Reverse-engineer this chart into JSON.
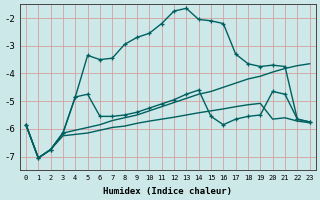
{
  "xlabel": "Humidex (Indice chaleur)",
  "background_color": "#cce8e8",
  "grid_color": "#d4a0a0",
  "line_color": "#006060",
  "xlim": [
    -0.5,
    23.5
  ],
  "ylim": [
    -7.5,
    -1.5
  ],
  "yticks": [
    -7,
    -6,
    -5,
    -4,
    -3,
    -2
  ],
  "xticks": [
    0,
    1,
    2,
    3,
    4,
    5,
    6,
    7,
    8,
    9,
    10,
    11,
    12,
    13,
    14,
    15,
    16,
    17,
    18,
    19,
    20,
    21,
    22,
    23
  ],
  "line1_x": [
    0,
    1,
    2,
    3,
    4,
    5,
    6,
    7,
    8,
    9,
    10,
    11,
    12,
    13,
    14,
    15,
    16,
    17,
    18,
    19,
    20,
    21,
    22,
    23
  ],
  "line1_y": [
    -5.85,
    -7.05,
    -6.75,
    -6.15,
    -4.85,
    -3.35,
    -3.5,
    -3.45,
    -2.95,
    -2.7,
    -2.55,
    -2.2,
    -1.75,
    -1.65,
    -2.05,
    -2.1,
    -2.2,
    -3.3,
    -3.65,
    -3.75,
    -3.7,
    -3.75,
    -5.65,
    -5.75
  ],
  "line2_x": [
    0,
    1,
    2,
    3,
    4,
    5,
    6,
    7,
    8,
    9,
    10,
    11,
    12,
    13,
    14,
    15,
    16,
    17,
    18,
    19,
    20,
    21,
    22,
    23
  ],
  "line2_y": [
    -5.85,
    -7.05,
    -6.75,
    -6.15,
    -4.85,
    -4.75,
    -5.55,
    -5.55,
    -5.5,
    -5.4,
    -5.25,
    -5.1,
    -4.95,
    -4.75,
    -4.6,
    -5.55,
    -5.85,
    -5.65,
    -5.55,
    -5.5,
    -4.65,
    -4.75,
    -5.65,
    -5.75
  ],
  "line3_x": [
    0,
    1,
    2,
    3,
    4,
    5,
    6,
    7,
    8,
    9,
    10,
    11,
    12,
    13,
    14,
    15,
    16,
    17,
    18,
    19,
    20,
    21,
    22,
    23
  ],
  "line3_y": [
    -5.85,
    -7.05,
    -6.75,
    -6.15,
    -6.05,
    -5.95,
    -5.85,
    -5.7,
    -5.6,
    -5.5,
    -5.35,
    -5.2,
    -5.05,
    -4.9,
    -4.75,
    -4.65,
    -4.5,
    -4.35,
    -4.2,
    -4.1,
    -3.95,
    -3.82,
    -3.72,
    -3.65
  ],
  "line4_x": [
    0,
    1,
    2,
    3,
    4,
    5,
    6,
    7,
    8,
    9,
    10,
    11,
    12,
    13,
    14,
    15,
    16,
    17,
    18,
    19,
    20,
    21,
    22,
    23
  ],
  "line4_y": [
    -5.85,
    -7.05,
    -6.75,
    -6.25,
    -6.2,
    -6.15,
    -6.05,
    -5.95,
    -5.9,
    -5.8,
    -5.72,
    -5.65,
    -5.58,
    -5.5,
    -5.42,
    -5.35,
    -5.28,
    -5.2,
    -5.13,
    -5.08,
    -5.65,
    -5.6,
    -5.72,
    -5.78
  ],
  "figsize": [
    3.2,
    2.0
  ],
  "dpi": 100
}
